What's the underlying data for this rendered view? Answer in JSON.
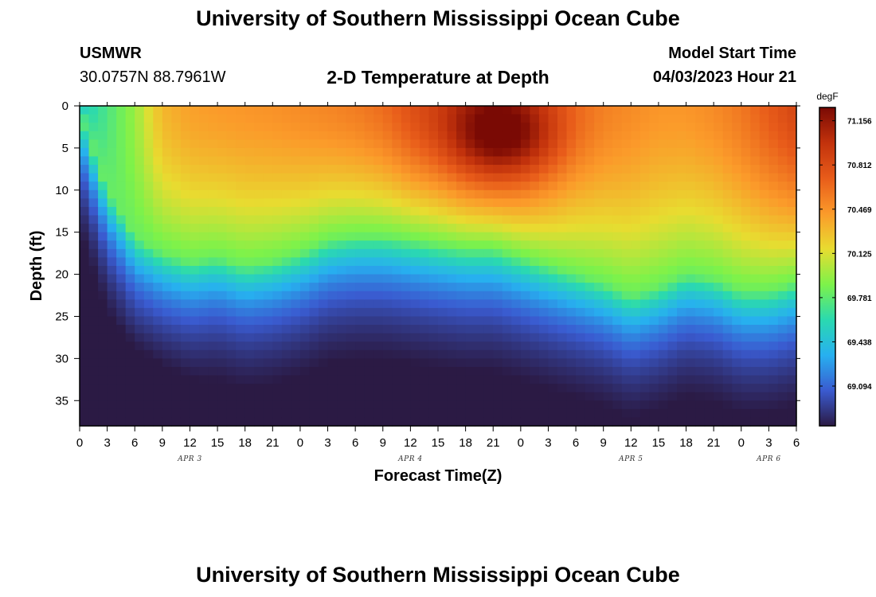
{
  "header": {
    "title": "University of Southern Mississippi Ocean Cube",
    "station": "USMWR",
    "coords": "30.0757N  88.7961W",
    "subtitle": "2-D Temperature at Depth",
    "model_start_label": "Model Start Time",
    "model_start_value": "04/03/2023 Hour 21"
  },
  "footer": {
    "title": "University of Southern Mississippi Ocean Cube"
  },
  "chart_data": {
    "type": "heatmap",
    "xlabel": "Forecast Time(Z)",
    "ylabel": "Depth (ft)",
    "x_tick_labels": [
      "0",
      "3",
      "6",
      "9",
      "12",
      "15",
      "18",
      "21",
      "0",
      "3",
      "6",
      "9",
      "12",
      "15",
      "18",
      "21",
      "0",
      "3",
      "6",
      "9",
      "12",
      "15",
      "18",
      "21",
      "0",
      "3",
      "6"
    ],
    "x_hours": [
      0,
      3,
      6,
      9,
      12,
      15,
      18,
      21,
      24,
      27,
      30,
      33,
      36,
      39,
      42,
      45,
      48,
      51,
      54,
      57,
      60,
      63,
      66,
      69,
      72,
      75,
      78
    ],
    "xlim": [
      0,
      78
    ],
    "day_labels": [
      {
        "label": "APR 3",
        "hour": 12
      },
      {
        "label": "APR 4",
        "hour": 36
      },
      {
        "label": "APR 5",
        "hour": 60
      },
      {
        "label": "APR 6",
        "hour": 75
      }
    ],
    "y_ticks": [
      0,
      5,
      10,
      15,
      20,
      25,
      30,
      35
    ],
    "ylim": [
      0,
      38
    ],
    "y_inverted": true,
    "colorbar": {
      "unit": "degF",
      "tick_labels": [
        "71.156",
        "70.812",
        "70.469",
        "70.125",
        "69.781",
        "69.438",
        "69.094"
      ],
      "range": [
        68.75,
        71.5
      ],
      "colors": [
        "#2b1a44",
        "#3a5bd0",
        "#27b0f0",
        "#2ad9b0",
        "#7df24a",
        "#e8dc30",
        "#fb9a2a",
        "#e85c1a",
        "#c2320c",
        "#7a0a04"
      ]
    },
    "grid": {
      "hours": [
        0,
        3,
        6,
        9,
        12,
        15,
        18,
        21,
        24,
        27,
        30,
        33,
        36,
        39,
        42,
        45,
        48,
        51,
        54,
        57,
        60,
        63,
        66,
        69,
        72,
        75,
        78
      ],
      "isotherm_depth_ft": [
        0.5,
        10,
        15.5,
        17.5,
        18.5,
        18,
        19,
        18.5,
        17.5,
        16,
        15.5,
        15.5,
        16,
        16.5,
        17,
        17,
        18,
        19,
        20,
        21,
        22.5,
        21.5,
        20,
        20.5,
        22,
        22,
        21
      ],
      "surface_temp_degF": [
        69.55,
        69.8,
        70.05,
        70.45,
        70.55,
        70.58,
        70.6,
        70.62,
        70.65,
        70.68,
        70.72,
        70.8,
        70.95,
        71.05,
        71.2,
        71.3,
        71.2,
        71.0,
        70.8,
        70.7,
        70.65,
        70.6,
        70.6,
        70.65,
        70.75,
        70.9,
        71.05
      ]
    }
  }
}
